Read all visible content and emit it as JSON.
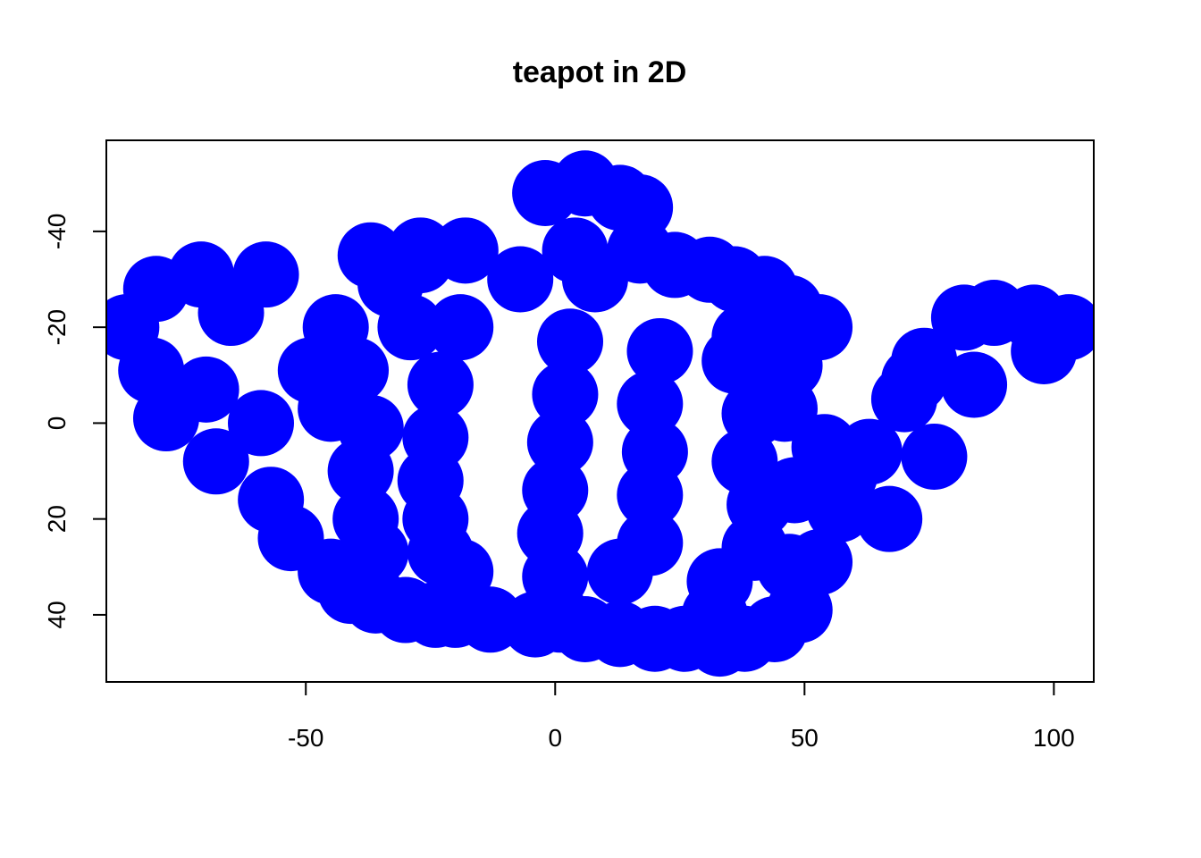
{
  "chart_data": {
    "type": "scatter",
    "title": "teapot in 2D",
    "xlabel": "",
    "ylabel": "",
    "xlim": [
      -90,
      108
    ],
    "ylim": [
      -59,
      54
    ],
    "y_reversed": true,
    "grid": false,
    "x_ticks": [
      -50,
      0,
      50,
      100
    ],
    "x_tick_labels": [
      "-50",
      "0",
      "50",
      "100"
    ],
    "y_ticks": [
      -40,
      -20,
      0,
      20,
      40
    ],
    "y_tick_labels": [
      "-40",
      "-20",
      "0",
      "20",
      "40"
    ],
    "marker_color": "#0000ff",
    "series": [
      {
        "points": [
          [
            -80,
            -28
          ],
          [
            -71,
            -31
          ],
          [
            -58,
            -31
          ],
          [
            -86,
            -20
          ],
          [
            -65,
            -23
          ],
          [
            -81,
            -11
          ],
          [
            -70,
            -7
          ],
          [
            -78,
            -1
          ],
          [
            -68,
            8
          ],
          [
            -59,
            0
          ],
          [
            -57,
            16
          ],
          [
            -53,
            24
          ],
          [
            -45,
            31
          ],
          [
            -41,
            35
          ],
          [
            -36,
            37
          ],
          [
            -30,
            39
          ],
          [
            -24,
            40
          ],
          [
            -20,
            40
          ],
          [
            -13,
            41
          ],
          [
            -4,
            42
          ],
          [
            1,
            41
          ],
          [
            6,
            43
          ],
          [
            13,
            44
          ],
          [
            20,
            45
          ],
          [
            26,
            45
          ],
          [
            33,
            46
          ],
          [
            38,
            45
          ],
          [
            44,
            43
          ],
          [
            49,
            39
          ],
          [
            53,
            29
          ],
          [
            57,
            18
          ],
          [
            63,
            6
          ],
          [
            67,
            20
          ],
          [
            -49,
            -11
          ],
          [
            -40,
            -11
          ],
          [
            -45,
            -3
          ],
          [
            -37,
            1
          ],
          [
            -39,
            10
          ],
          [
            -38,
            20
          ],
          [
            -36,
            27
          ],
          [
            -44,
            -20
          ],
          [
            -37,
            -35
          ],
          [
            -27,
            -34
          ],
          [
            -18,
            -36
          ],
          [
            -7,
            -30
          ],
          [
            -2,
            -48
          ],
          [
            6,
            -50
          ],
          [
            13,
            -47
          ],
          [
            17,
            -45
          ],
          [
            4,
            -36
          ],
          [
            8,
            -30
          ],
          [
            17,
            -36
          ],
          [
            24,
            -33
          ],
          [
            31,
            -32
          ],
          [
            36,
            -30
          ],
          [
            42,
            -28
          ],
          [
            47,
            -24
          ],
          [
            -29,
            -20
          ],
          [
            -19,
            -20
          ],
          [
            -23,
            -8
          ],
          [
            -24,
            3
          ],
          [
            -25,
            12
          ],
          [
            -24,
            20
          ],
          [
            -23,
            27
          ],
          [
            -19,
            31
          ],
          [
            3,
            -17
          ],
          [
            2,
            -6
          ],
          [
            1,
            4
          ],
          [
            0,
            14
          ],
          [
            -1,
            23
          ],
          [
            0,
            32
          ],
          [
            21,
            -15
          ],
          [
            19,
            -4
          ],
          [
            20,
            6
          ],
          [
            19,
            15
          ],
          [
            19,
            25
          ],
          [
            13,
            31
          ],
          [
            -27,
            -36
          ],
          [
            -33,
            -29
          ],
          [
            36,
            -13
          ],
          [
            47,
            -12
          ],
          [
            40,
            -2
          ],
          [
            38,
            8
          ],
          [
            41,
            17
          ],
          [
            40,
            26
          ],
          [
            33,
            33
          ],
          [
            47,
            30
          ],
          [
            32,
            40
          ],
          [
            38,
            -18
          ],
          [
            46,
            -3
          ],
          [
            54,
            5
          ],
          [
            48,
            14
          ],
          [
            58,
            11
          ],
          [
            76,
            7
          ],
          [
            72,
            -9
          ],
          [
            74,
            -13
          ],
          [
            82,
            -22
          ],
          [
            88,
            -23
          ],
          [
            96,
            -22
          ],
          [
            103,
            -20
          ],
          [
            98,
            -15
          ],
          [
            84,
            -8
          ],
          [
            70,
            -5
          ],
          [
            53,
            -20
          ],
          [
            43,
            -22
          ]
        ]
      }
    ]
  }
}
